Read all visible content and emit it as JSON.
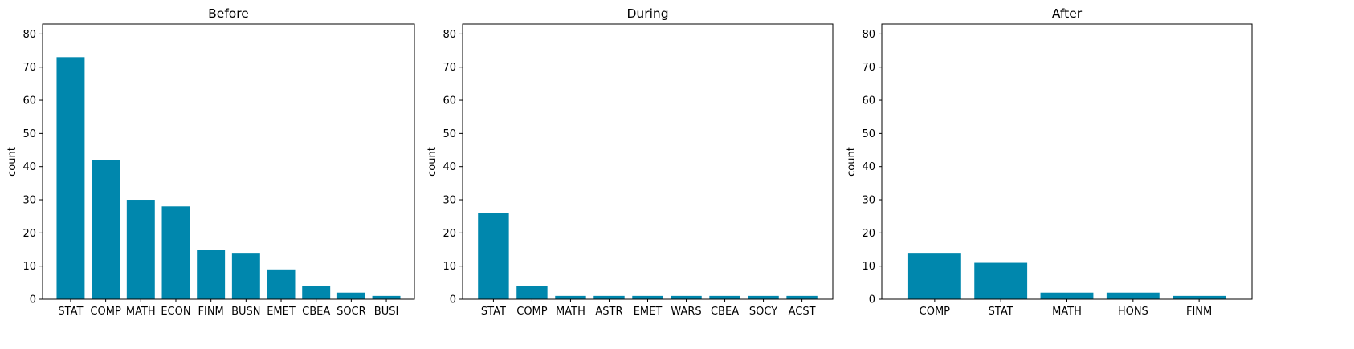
{
  "colors": {
    "bar": "#0087ad",
    "axis": "#000000",
    "background": "#ffffff"
  },
  "chart_data": [
    {
      "type": "bar",
      "title": "Before",
      "xlabel": "",
      "ylabel": "count",
      "ylim": [
        0,
        83
      ],
      "yticks": [
        0,
        10,
        20,
        30,
        40,
        50,
        60,
        70,
        80
      ],
      "grid": false,
      "categories": [
        "STAT",
        "COMP",
        "MATH",
        "ECON",
        "FINM",
        "BUSN",
        "EMET",
        "CBEA",
        "SOCR",
        "BUSI"
      ],
      "values": [
        73,
        42,
        30,
        28,
        15,
        14,
        9,
        4,
        2,
        1
      ]
    },
    {
      "type": "bar",
      "title": "During",
      "xlabel": "",
      "ylabel": "count",
      "ylim": [
        0,
        83
      ],
      "yticks": [
        0,
        10,
        20,
        30,
        40,
        50,
        60,
        70,
        80
      ],
      "grid": false,
      "categories": [
        "STAT",
        "COMP",
        "MATH",
        "ASTR",
        "EMET",
        "WARS",
        "CBEA",
        "SOCY",
        "ACST"
      ],
      "values": [
        26,
        4,
        1,
        1,
        1,
        1,
        1,
        1,
        1
      ]
    },
    {
      "type": "bar",
      "title": "After",
      "xlabel": "",
      "ylabel": "count",
      "ylim": [
        0,
        83
      ],
      "yticks": [
        0,
        10,
        20,
        30,
        40,
        50,
        60,
        70,
        80
      ],
      "grid": false,
      "categories": [
        "COMP",
        "STAT",
        "MATH",
        "HONS",
        "FINM"
      ],
      "values": [
        14,
        11,
        2,
        2,
        1
      ]
    }
  ]
}
